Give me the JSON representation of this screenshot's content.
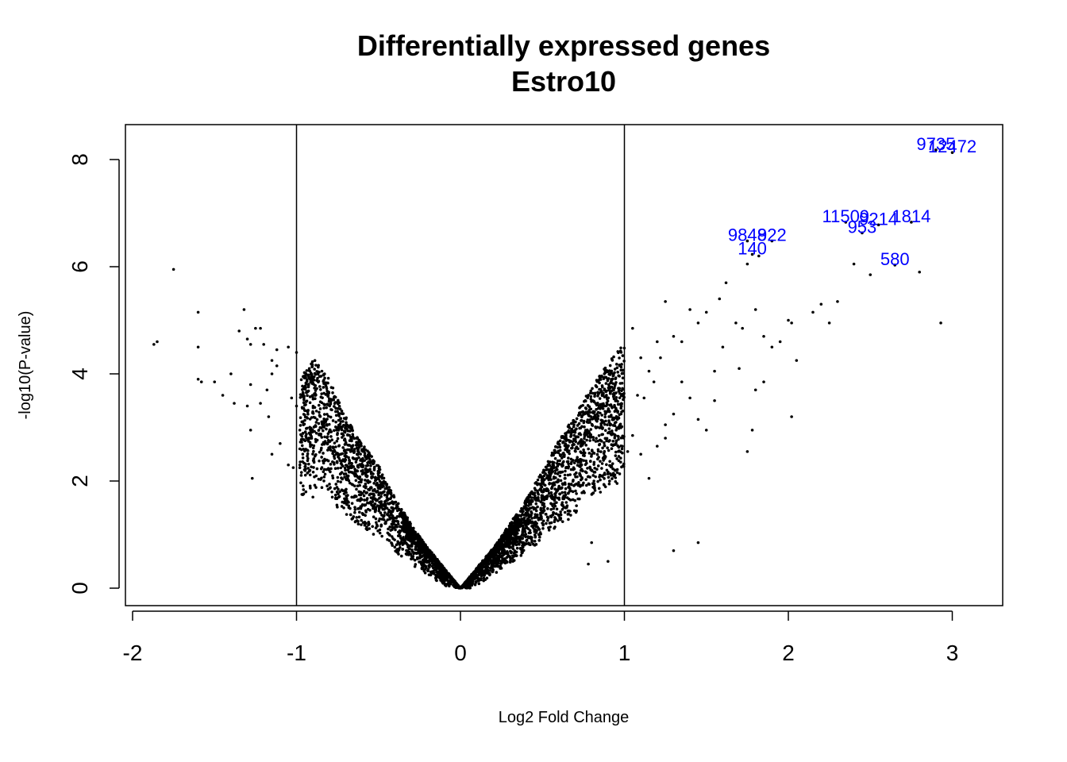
{
  "chart_data": {
    "type": "scatter",
    "title": "Differentially expressed genes",
    "subtitle": "Estro10",
    "xlabel": "Log2 Fold Change",
    "ylabel": "-log10(P-value)",
    "xlim": [
      -2.05,
      3.3
    ],
    "ylim": [
      -0.3,
      8.7
    ],
    "x_ticks": [
      "-2",
      "-1",
      "0",
      "1",
      "2",
      "3"
    ],
    "y_ticks": [
      "0",
      "2",
      "4",
      "6",
      "8"
    ],
    "vertical_lines": [
      -1,
      1
    ],
    "grid": false,
    "point_color": "#000000",
    "label_color": "#0000ff",
    "highlighted_points": [
      {
        "x": 2.9,
        "y": 8.3,
        "label": "9735"
      },
      {
        "x": 3.0,
        "y": 8.25,
        "label": "12472"
      },
      {
        "x": 2.75,
        "y": 6.95,
        "label": "1814"
      },
      {
        "x": 2.35,
        "y": 6.95,
        "label": "11509"
      },
      {
        "x": 2.55,
        "y": 6.9,
        "label": "9214"
      },
      {
        "x": 2.45,
        "y": 6.75,
        "label": "953"
      },
      {
        "x": 1.75,
        "y": 6.6,
        "label": "9848"
      },
      {
        "x": 1.9,
        "y": 6.6,
        "label": "922"
      },
      {
        "x": 1.78,
        "y": 6.35,
        "label": "140"
      },
      {
        "x": 2.65,
        "y": 6.15,
        "label": "580"
      }
    ],
    "scatter_points": [
      [
        -1.85,
        4.6
      ],
      [
        -1.87,
        4.55
      ],
      [
        -1.75,
        5.95
      ],
      [
        -1.6,
        5.15
      ],
      [
        -1.6,
        4.5
      ],
      [
        -1.6,
        3.9
      ],
      [
        -1.58,
        3.85
      ],
      [
        -1.5,
        3.85
      ],
      [
        -1.45,
        3.6
      ],
      [
        -1.4,
        4.0
      ],
      [
        -1.38,
        3.45
      ],
      [
        -1.35,
        4.8
      ],
      [
        -1.32,
        5.2
      ],
      [
        -1.3,
        4.65
      ],
      [
        -1.28,
        4.55
      ],
      [
        -1.25,
        4.85
      ],
      [
        -1.22,
        4.85
      ],
      [
        -1.2,
        4.55
      ],
      [
        -1.18,
        3.7
      ],
      [
        -1.15,
        4.0
      ],
      [
        -1.12,
        4.45
      ],
      [
        -1.28,
        3.8
      ],
      [
        -1.3,
        3.4
      ],
      [
        -1.28,
        2.95
      ],
      [
        -1.27,
        2.05
      ],
      [
        -1.22,
        3.45
      ],
      [
        -1.17,
        3.2
      ],
      [
        -1.15,
        2.5
      ],
      [
        -1.1,
        2.7
      ],
      [
        -1.05,
        2.3
      ],
      [
        -1.03,
        3.55
      ],
      [
        -1.0,
        3.4
      ],
      [
        -0.98,
        2.95
      ],
      [
        -1.02,
        2.25
      ],
      [
        -1.15,
        4.25
      ],
      [
        -1.12,
        4.15
      ],
      [
        -1.05,
        4.5
      ],
      [
        -1.0,
        4.4
      ],
      [
        -0.96,
        3.95
      ],
      [
        -0.95,
        3.75
      ],
      [
        -0.98,
        2.6
      ],
      [
        -0.9,
        1.7
      ]
    ],
    "cloud": {
      "left_edge": [
        [
          -0.98,
          3.9
        ],
        [
          -0.9,
          4.3
        ],
        [
          -0.8,
          3.9
        ],
        [
          -0.7,
          3.2
        ],
        [
          -0.6,
          2.7
        ],
        [
          -0.5,
          2.3
        ],
        [
          -0.4,
          1.7
        ],
        [
          -0.3,
          1.2
        ],
        [
          -0.2,
          0.75
        ],
        [
          -0.1,
          0.35
        ],
        [
          0.0,
          0.0
        ]
      ],
      "right_edge": [
        [
          0.0,
          0.0
        ],
        [
          0.1,
          0.35
        ],
        [
          0.2,
          0.75
        ],
        [
          0.3,
          1.2
        ],
        [
          0.4,
          1.65
        ],
        [
          0.5,
          2.2
        ],
        [
          0.6,
          2.75
        ],
        [
          0.7,
          3.25
        ],
        [
          0.8,
          3.75
        ],
        [
          0.9,
          4.2
        ],
        [
          1.0,
          4.6
        ]
      ],
      "right_spread_points": [
        [
          1.05,
          4.85
        ],
        [
          1.1,
          4.3
        ],
        [
          1.15,
          4.05
        ],
        [
          1.2,
          4.6
        ],
        [
          1.25,
          5.35
        ],
        [
          1.3,
          4.7
        ],
        [
          1.35,
          4.6
        ],
        [
          1.4,
          5.2
        ],
        [
          1.45,
          4.95
        ],
        [
          1.5,
          5.15
        ],
        [
          1.55,
          4.05
        ],
        [
          1.58,
          5.4
        ],
        [
          1.62,
          5.7
        ],
        [
          1.68,
          4.95
        ],
        [
          1.72,
          4.85
        ],
        [
          1.75,
          6.05
        ],
        [
          1.8,
          5.2
        ],
        [
          1.82,
          6.2
        ],
        [
          1.85,
          4.7
        ],
        [
          1.9,
          4.5
        ],
        [
          1.95,
          4.6
        ],
        [
          2.0,
          5.0
        ],
        [
          2.02,
          4.95
        ],
        [
          2.05,
          4.25
        ],
        [
          2.15,
          5.15
        ],
        [
          2.2,
          5.3
        ],
        [
          2.25,
          4.95
        ],
        [
          2.3,
          5.35
        ],
        [
          2.4,
          6.05
        ],
        [
          2.5,
          5.85
        ],
        [
          2.8,
          5.9
        ],
        [
          2.93,
          4.95
        ],
        [
          1.8,
          3.7
        ],
        [
          1.78,
          2.95
        ],
        [
          1.75,
          2.55
        ],
        [
          2.02,
          3.2
        ],
        [
          1.3,
          3.25
        ],
        [
          1.25,
          2.8
        ],
        [
          1.15,
          2.05
        ],
        [
          1.1,
          2.5
        ],
        [
          1.05,
          2.85
        ],
        [
          1.02,
          2.55
        ],
        [
          1.3,
          0.7
        ],
        [
          1.45,
          0.85
        ],
        [
          0.9,
          0.5
        ],
        [
          0.78,
          0.45
        ],
        [
          0.8,
          0.85
        ],
        [
          0.95,
          2.95
        ],
        [
          0.98,
          3.4
        ],
        [
          1.08,
          3.6
        ],
        [
          1.18,
          3.85
        ],
        [
          1.22,
          4.3
        ],
        [
          1.35,
          3.85
        ],
        [
          1.4,
          3.55
        ],
        [
          1.45,
          3.15
        ],
        [
          1.55,
          3.5
        ],
        [
          1.6,
          4.5
        ],
        [
          1.7,
          4.1
        ],
        [
          1.85,
          3.85
        ],
        [
          1.25,
          3.05
        ],
        [
          1.12,
          3.55
        ],
        [
          1.2,
          2.65
        ],
        [
          1.5,
          2.95
        ]
      ]
    }
  }
}
